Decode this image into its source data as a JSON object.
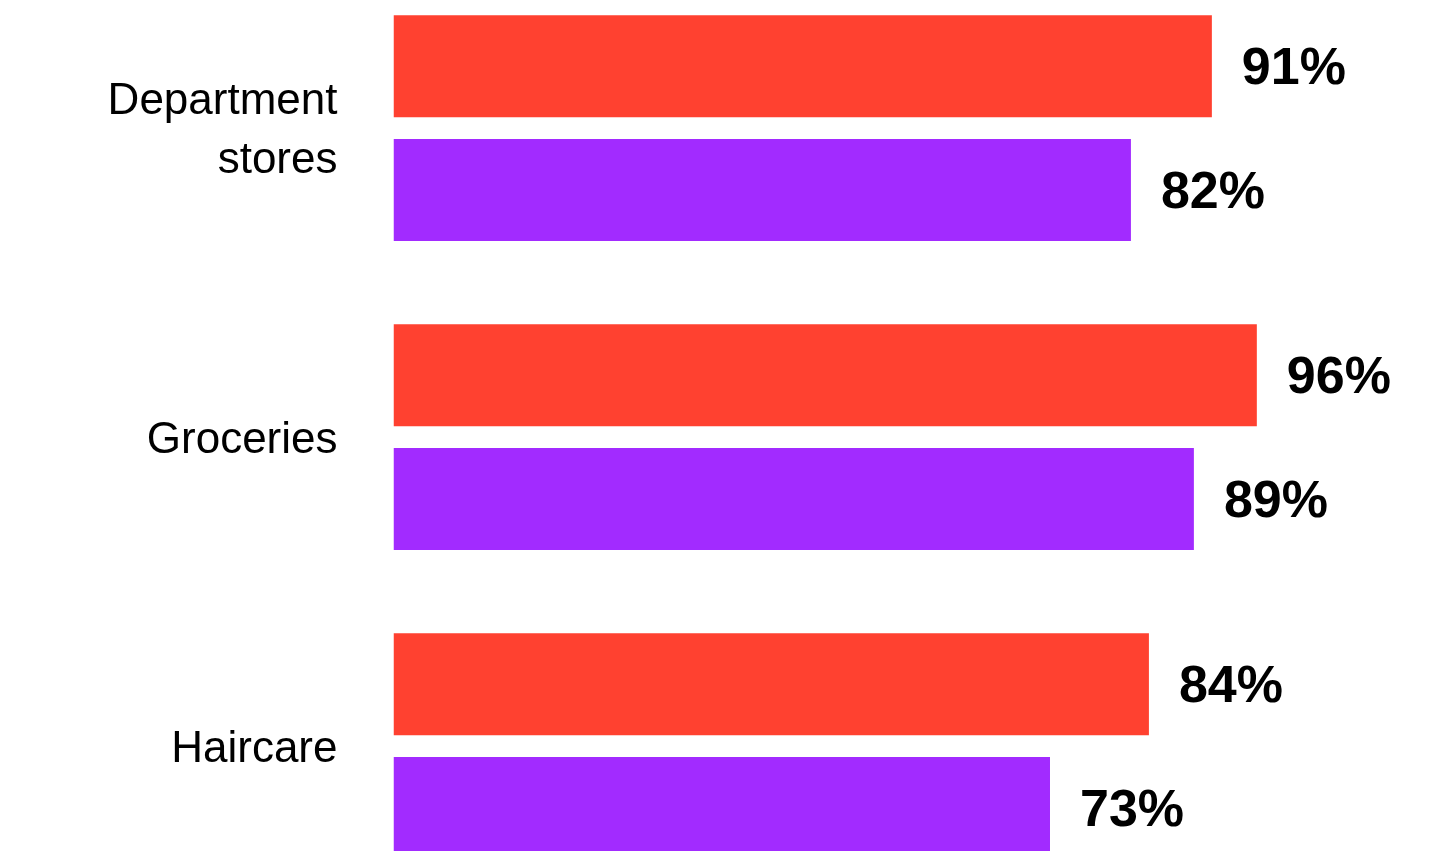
{
  "chart_data": {
    "type": "bar",
    "orientation": "horizontal",
    "categories": [
      "Department stores",
      "Groceries",
      "Haircare"
    ],
    "series": [
      {
        "color": "#ff4130",
        "values": [
          91,
          96,
          84
        ],
        "value_labels": [
          "91%",
          "96%",
          "84%"
        ]
      },
      {
        "color": "#a22bff",
        "values": [
          82,
          89,
          73
        ],
        "value_labels": [
          "82%",
          "89%",
          "73%"
        ]
      }
    ]
  }
}
